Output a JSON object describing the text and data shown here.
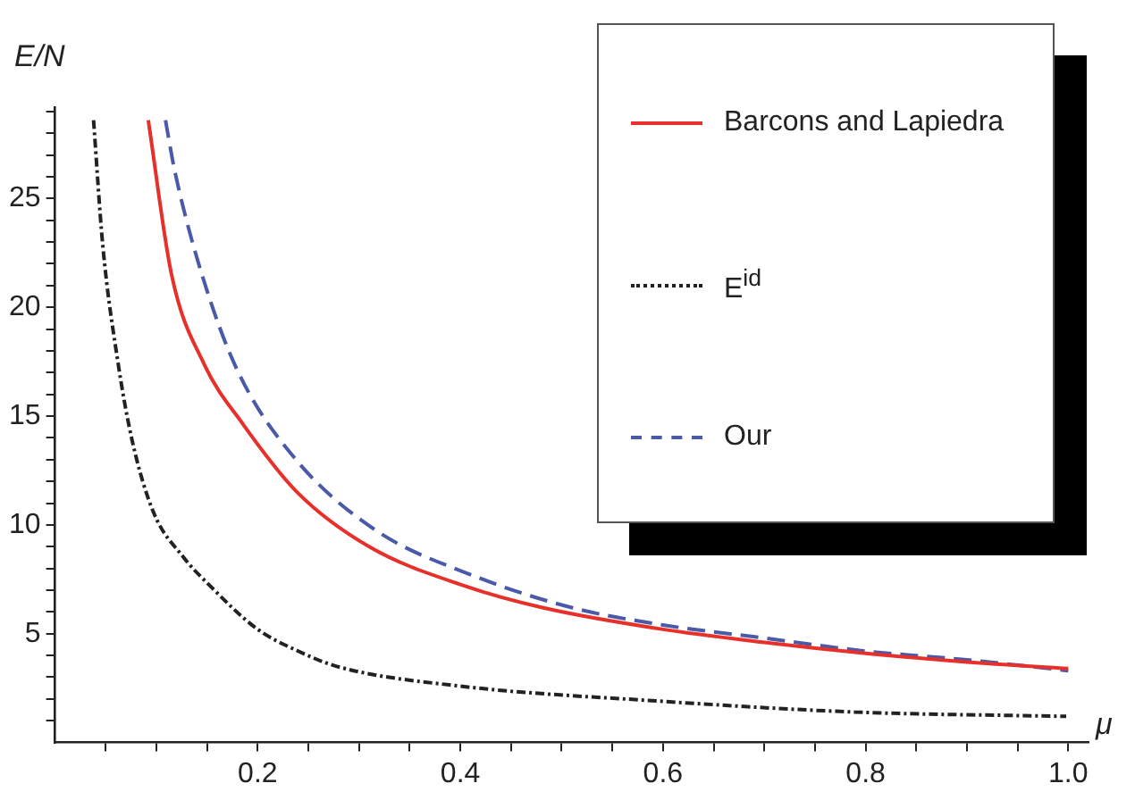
{
  "chart_data": {
    "type": "line",
    "xlabel": "μ",
    "ylabel": "E/N",
    "xlim": [
      0,
      1.02
    ],
    "ylim": [
      0,
      29.2
    ],
    "xticks": [
      {
        "value": 0.05,
        "label": null
      },
      {
        "value": 0.1,
        "label": null
      },
      {
        "value": 0.15,
        "label": null
      },
      0.2,
      {
        "value": 0.25,
        "label": null
      },
      {
        "value": 0.3,
        "label": null
      },
      {
        "value": 0.35,
        "label": null
      },
      0.4,
      {
        "value": 0.45,
        "label": null
      },
      {
        "value": 0.5,
        "label": null
      },
      {
        "value": 0.55,
        "label": null
      },
      0.6,
      {
        "value": 0.65,
        "label": null
      },
      {
        "value": 0.7,
        "label": null
      },
      {
        "value": 0.75,
        "label": null
      },
      0.8,
      {
        "value": 0.85,
        "label": null
      },
      {
        "value": 0.9,
        "label": null
      },
      {
        "value": 0.95,
        "label": null
      },
      {
        "value": 1,
        "label": "1.0"
      }
    ],
    "yticks": [
      {
        "value": 1,
        "label": null
      },
      {
        "value": 2,
        "label": null
      },
      {
        "value": 3,
        "label": null
      },
      {
        "value": 4,
        "label": null
      },
      5,
      {
        "value": 6,
        "label": null
      },
      {
        "value": 7,
        "label": null
      },
      {
        "value": 8,
        "label": null
      },
      {
        "value": 9,
        "label": null
      },
      10,
      {
        "value": 11,
        "label": null
      },
      {
        "value": 12,
        "label": null
      },
      {
        "value": 13,
        "label": null
      },
      {
        "value": 14,
        "label": null
      },
      15,
      {
        "value": 16,
        "label": null
      },
      {
        "value": 17,
        "label": null
      },
      {
        "value": 18,
        "label": null
      },
      {
        "value": 19,
        "label": null
      },
      20,
      {
        "value": 21,
        "label": null
      },
      {
        "value": 22,
        "label": null
      },
      {
        "value": 23,
        "label": null
      },
      {
        "value": 24,
        "label": null
      },
      25,
      {
        "value": 26,
        "label": null
      },
      {
        "value": 27,
        "label": null
      },
      {
        "value": 28,
        "label": null
      },
      {
        "value": 29,
        "label": null
      }
    ],
    "grid": false,
    "legend": "top right",
    "series": [
      {
        "name": "Barcons and Lapiedra",
        "color": "#e8302a",
        "line_style": "solid",
        "x": [
          0.092,
          0.115,
          0.147,
          0.186,
          0.239,
          0.31,
          0.404,
          0.481,
          0.6,
          0.7,
          0.8,
          0.9,
          1.0
        ],
        "values": [
          28.6,
          21.5,
          17.4,
          14.6,
          11.5,
          9.0,
          7.2,
          6.2,
          5.2,
          4.6,
          4.1,
          3.7,
          3.4
        ]
      },
      {
        "name": "E$^{id}$",
        "color": "#222222",
        "line_style": "dotted",
        "x": [
          0.038,
          0.047,
          0.062,
          0.076,
          0.097,
          0.127,
          0.153,
          0.2,
          0.24,
          0.278,
          0.398,
          0.597,
          0.789,
          0.998
        ],
        "values": [
          28.6,
          22.9,
          17.5,
          13.9,
          10.6,
          8.5,
          7.2,
          5.2,
          4.2,
          3.5,
          2.6,
          1.9,
          1.4,
          1.2
        ]
      },
      {
        "name": "Our",
        "color": "#4a5aa8",
        "line_style": "dashed",
        "x": [
          0.109,
          0.118,
          0.145,
          0.18,
          0.236,
          0.315,
          0.411,
          0.51,
          0.6,
          0.7,
          0.8,
          0.9,
          1.0
        ],
        "values": [
          28.6,
          26.3,
          21.5,
          17.1,
          13.1,
          9.8,
          7.7,
          6.2,
          5.4,
          4.8,
          4.2,
          3.8,
          3.3
        ]
      }
    ]
  }
}
